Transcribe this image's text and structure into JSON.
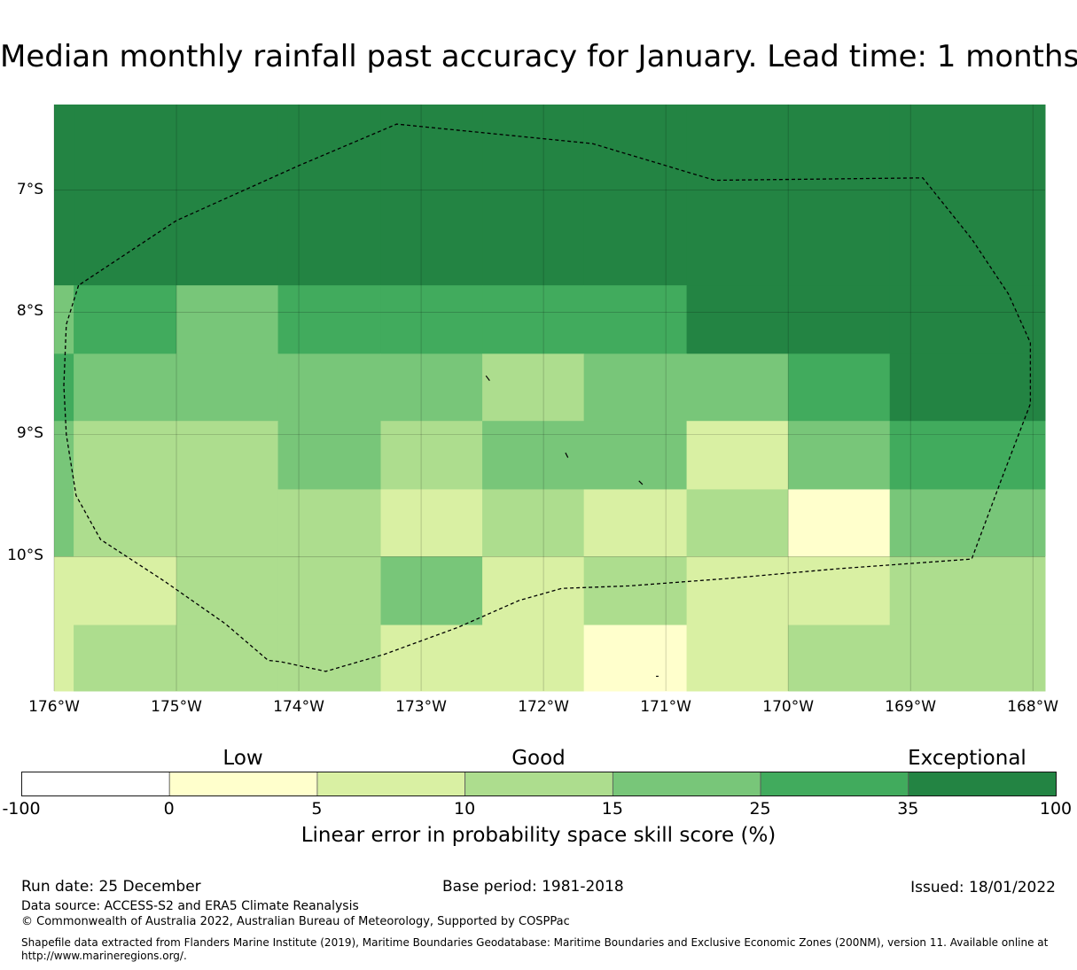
{
  "title": "Median monthly rainfall past accuracy for January. Lead time: 1 months",
  "map": {
    "lon_range": [
      -176,
      -167.9
    ],
    "lat_range": [
      -6.3,
      -11.1
    ],
    "cell_grid": {
      "lon_edges": [
        -176,
        -175.84,
        -175,
        -174.17,
        -173.33,
        -172.5,
        -171.67,
        -170.83,
        -170,
        -169.17,
        -167.9
      ],
      "lat_edges": [
        -6.3,
        -7.78,
        -8.34,
        -8.89,
        -9.45,
        -10.0,
        -10.56,
        -11.1
      ],
      "category_index_rows": [
        [
          6,
          6,
          6,
          6,
          6,
          6,
          6,
          6,
          6,
          6
        ],
        [
          4,
          5,
          4,
          5,
          5,
          5,
          5,
          6,
          6,
          6
        ],
        [
          5,
          4,
          4,
          4,
          4,
          3,
          4,
          4,
          5,
          6
        ],
        [
          4,
          3,
          3,
          4,
          3,
          4,
          4,
          2,
          4,
          5
        ],
        [
          4,
          3,
          3,
          3,
          2,
          3,
          2,
          3,
          1,
          4
        ],
        [
          2,
          2,
          3,
          3,
          4,
          2,
          3,
          2,
          2,
          3
        ],
        [
          2,
          3,
          3,
          3,
          2,
          2,
          1,
          2,
          3,
          3
        ]
      ]
    },
    "x_ticks": [
      "176°W",
      "175°W",
      "174°W",
      "173°W",
      "172°W",
      "171°W",
      "170°W",
      "169°W",
      "168°W"
    ],
    "x_tick_values": [
      -176,
      -175,
      -174,
      -173,
      -172,
      -171,
      -170,
      -169,
      -168
    ],
    "y_ticks": [
      "7°S",
      "8°S",
      "9°S",
      "10°S"
    ],
    "y_tick_values": [
      -7,
      -8,
      -9,
      -10
    ],
    "eez_boundary": [
      [
        -175.8,
        -7.78
      ],
      [
        -175.9,
        -8.1
      ],
      [
        -175.92,
        -8.6
      ],
      [
        -175.9,
        -9.0
      ],
      [
        -175.82,
        -9.5
      ],
      [
        -175.62,
        -9.86
      ],
      [
        -175.1,
        -10.2
      ],
      [
        -174.6,
        -10.55
      ],
      [
        -174.25,
        -10.85
      ],
      [
        -174.15,
        -10.86
      ],
      [
        -173.78,
        -10.94
      ],
      [
        -173.3,
        -10.8
      ],
      [
        -172.7,
        -10.58
      ],
      [
        -172.2,
        -10.36
      ],
      [
        -171.85,
        -10.26
      ],
      [
        -171.3,
        -10.24
      ],
      [
        -170.5,
        -10.18
      ],
      [
        -169.6,
        -10.1
      ],
      [
        -168.5,
        -10.02
      ],
      [
        -168.25,
        -9.35
      ],
      [
        -168.02,
        -8.75
      ],
      [
        -168.02,
        -8.25
      ],
      [
        -168.2,
        -7.85
      ],
      [
        -168.5,
        -7.4
      ],
      [
        -168.9,
        -6.9
      ],
      [
        -170.6,
        -6.92
      ],
      [
        -171.6,
        -6.62
      ],
      [
        -173.2,
        -6.46
      ],
      [
        -174.0,
        -6.8
      ],
      [
        -175.0,
        -7.25
      ],
      [
        -175.8,
        -7.78
      ]
    ],
    "islands": [
      [
        [
          -172.47,
          -8.52
        ],
        [
          -172.44,
          -8.56
        ]
      ],
      [
        [
          -171.82,
          -9.15
        ],
        [
          -171.8,
          -9.19
        ]
      ],
      [
        [
          -171.22,
          -9.38
        ],
        [
          -171.19,
          -9.41
        ]
      ],
      [
        [
          -171.08,
          -10.98
        ],
        [
          -171.06,
          -10.98
        ]
      ]
    ]
  },
  "colorbar": {
    "boundaries": [
      "-100",
      "0",
      "5",
      "10",
      "15",
      "25",
      "35",
      "100"
    ],
    "colors": [
      "#ffffff",
      "#ffffcc",
      "#d9f0a3",
      "#addd8e",
      "#78c679",
      "#41ab5d",
      "#238443"
    ],
    "categories": [
      {
        "label": "Low",
        "position_index": 1.5
      },
      {
        "label": "Good",
        "position_index": 3.5
      },
      {
        "label": "Exceptional",
        "position_index": 6.4
      }
    ],
    "title": "Linear error in probability space skill score (%)"
  },
  "footer": {
    "run_date": "Run date: 25 December",
    "base_period": "Base period: 1981-2018",
    "issued": "Issued: 18/01/2022",
    "data_source": "Data source: ACCESS-S2 and ERA5 Climate Reanalysis",
    "copyright": "© Commonwealth of Australia 2022, Australian Bureau of Meteorology, Supported by COSPPac",
    "shapefile_line1": "Shapefile data extracted from Flanders Marine Institute (2019), Maritime Boundaries Geodatabase: Maritime Boundaries and Exclusive Economic Zones (200NM), version 11. Available online at",
    "shapefile_line2": "http://www.marineregions.org/."
  }
}
